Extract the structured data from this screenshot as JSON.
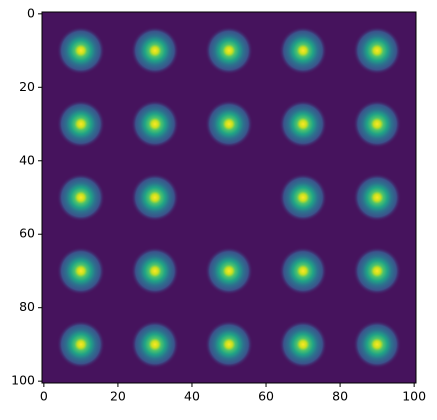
{
  "chart_data": {
    "type": "image",
    "x": [
      10,
      30,
      50,
      70,
      90,
      10,
      30,
      50,
      70,
      90,
      10,
      30,
      70,
      90,
      10,
      30,
      50,
      70,
      90,
      10,
      30,
      50,
      70,
      90
    ],
    "y": [
      10,
      10,
      10,
      10,
      10,
      30,
      30,
      30,
      30,
      30,
      50,
      50,
      50,
      50,
      70,
      70,
      70,
      70,
      70,
      90,
      90,
      90,
      90,
      90
    ],
    "xlim": [
      -0.5,
      100.5
    ],
    "ylim": [
      100.5,
      -0.5
    ],
    "xticks": [
      0,
      20,
      40,
      60,
      80,
      100
    ],
    "yticks": [
      0,
      20,
      40,
      60,
      80,
      100
    ],
    "background": "#46135d"
  }
}
